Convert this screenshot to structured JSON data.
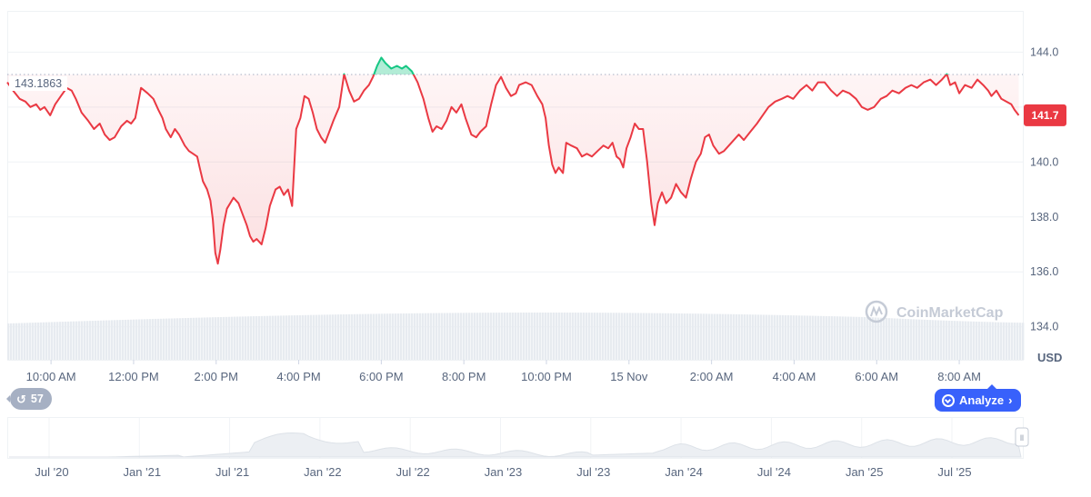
{
  "chart_data": {
    "type": "area",
    "currency_label": "USD",
    "reference_value": "143.1863",
    "current_value": "141.7",
    "y_ticks": [
      134.0,
      136.0,
      138.0,
      140.0,
      142.0,
      144.0
    ],
    "y_tick_labels": [
      "134.0",
      "136.0",
      "138.0",
      "140.0",
      "",
      "144.0"
    ],
    "ylim": [
      132.8,
      145.5
    ],
    "x_tick_labels": [
      "10:00 AM",
      "12:00 PM",
      "2:00 PM",
      "4:00 PM",
      "6:00 PM",
      "8:00 PM",
      "10:00 PM",
      "15 Nov",
      "2:00 AM",
      "4:00 AM",
      "6:00 AM",
      "8:00 AM"
    ],
    "x_ticks_t": [
      0.33,
      1.33,
      2.33,
      3.33,
      4.33,
      5.33,
      6.33,
      7.33,
      8.33,
      9.33,
      10.33,
      11.33
    ],
    "x_range_t": [
      -0.2,
      12.1
    ],
    "colors": {
      "down": "#ea3943",
      "up": "#16c784",
      "accent": "#3861fb"
    },
    "series": [
      {
        "values": [
          [
            -0.2,
            142.9
          ],
          [
            -0.13,
            142.6
          ],
          [
            -0.05,
            142.3
          ],
          [
            0.02,
            142.2
          ],
          [
            0.08,
            142.0
          ],
          [
            0.15,
            142.1
          ],
          [
            0.2,
            141.9
          ],
          [
            0.25,
            142.0
          ],
          [
            0.32,
            141.7
          ],
          [
            0.38,
            142.1
          ],
          [
            0.45,
            142.4
          ],
          [
            0.52,
            142.7
          ],
          [
            0.58,
            142.6
          ],
          [
            0.63,
            142.3
          ],
          [
            0.7,
            141.8
          ],
          [
            0.78,
            141.5
          ],
          [
            0.85,
            141.2
          ],
          [
            0.92,
            141.4
          ],
          [
            0.98,
            141.0
          ],
          [
            1.04,
            140.8
          ],
          [
            1.1,
            140.9
          ],
          [
            1.18,
            141.3
          ],
          [
            1.25,
            141.5
          ],
          [
            1.3,
            141.4
          ],
          [
            1.35,
            141.6
          ],
          [
            1.42,
            142.7
          ],
          [
            1.5,
            142.5
          ],
          [
            1.57,
            142.3
          ],
          [
            1.63,
            141.9
          ],
          [
            1.68,
            141.6
          ],
          [
            1.72,
            141.2
          ],
          [
            1.78,
            140.9
          ],
          [
            1.83,
            141.2
          ],
          [
            1.88,
            141.0
          ],
          [
            1.95,
            140.6
          ],
          [
            2.0,
            140.4
          ],
          [
            2.05,
            140.3
          ],
          [
            2.1,
            140.2
          ],
          [
            2.13,
            139.8
          ],
          [
            2.17,
            139.3
          ],
          [
            2.22,
            139.0
          ],
          [
            2.26,
            138.6
          ],
          [
            2.29,
            137.9
          ],
          [
            2.32,
            136.7
          ],
          [
            2.35,
            136.3
          ],
          [
            2.38,
            136.8
          ],
          [
            2.42,
            137.7
          ],
          [
            2.46,
            138.3
          ],
          [
            2.5,
            138.5
          ],
          [
            2.54,
            138.7
          ],
          [
            2.6,
            138.5
          ],
          [
            2.65,
            138.1
          ],
          [
            2.7,
            137.7
          ],
          [
            2.74,
            137.3
          ],
          [
            2.78,
            137.1
          ],
          [
            2.82,
            137.2
          ],
          [
            2.88,
            137.0
          ],
          [
            2.93,
            137.6
          ],
          [
            2.98,
            138.4
          ],
          [
            3.05,
            139.0
          ],
          [
            3.1,
            139.1
          ],
          [
            3.15,
            138.8
          ],
          [
            3.2,
            139.0
          ],
          [
            3.25,
            138.4
          ],
          [
            3.3,
            141.2
          ],
          [
            3.35,
            141.6
          ],
          [
            3.4,
            142.4
          ],
          [
            3.45,
            142.3
          ],
          [
            3.5,
            141.8
          ],
          [
            3.55,
            141.2
          ],
          [
            3.6,
            140.9
          ],
          [
            3.65,
            140.7
          ],
          [
            3.7,
            141.1
          ],
          [
            3.75,
            141.5
          ],
          [
            3.82,
            142.0
          ],
          [
            3.88,
            143.2
          ],
          [
            3.94,
            142.6
          ],
          [
            4.0,
            142.2
          ],
          [
            4.06,
            142.3
          ],
          [
            4.12,
            142.6
          ],
          [
            4.18,
            142.8
          ],
          [
            4.23,
            143.1
          ],
          [
            4.28,
            143.5
          ],
          [
            4.33,
            143.8
          ],
          [
            4.38,
            143.6
          ],
          [
            4.45,
            143.4
          ],
          [
            4.52,
            143.5
          ],
          [
            4.58,
            143.4
          ],
          [
            4.63,
            143.5
          ],
          [
            4.7,
            143.3
          ],
          [
            4.77,
            142.9
          ],
          [
            4.84,
            142.3
          ],
          [
            4.9,
            141.6
          ],
          [
            4.95,
            141.1
          ],
          [
            5.0,
            141.3
          ],
          [
            5.06,
            141.2
          ],
          [
            5.12,
            141.5
          ],
          [
            5.18,
            142.0
          ],
          [
            5.24,
            141.8
          ],
          [
            5.3,
            142.1
          ],
          [
            5.35,
            141.6
          ],
          [
            5.42,
            141.0
          ],
          [
            5.48,
            140.9
          ],
          [
            5.53,
            141.1
          ],
          [
            5.6,
            141.3
          ],
          [
            5.66,
            142.1
          ],
          [
            5.72,
            142.8
          ],
          [
            5.78,
            143.1
          ],
          [
            5.84,
            142.7
          ],
          [
            5.9,
            142.4
          ],
          [
            5.96,
            142.5
          ],
          [
            6.0,
            142.8
          ],
          [
            6.08,
            142.9
          ],
          [
            6.15,
            142.8
          ],
          [
            6.22,
            142.4
          ],
          [
            6.28,
            142.1
          ],
          [
            6.32,
            141.6
          ],
          [
            6.36,
            140.6
          ],
          [
            6.4,
            139.9
          ],
          [
            6.44,
            139.6
          ],
          [
            6.48,
            139.8
          ],
          [
            6.53,
            139.6
          ],
          [
            6.57,
            140.7
          ],
          [
            6.63,
            140.6
          ],
          [
            6.7,
            140.5
          ],
          [
            6.76,
            140.2
          ],
          [
            6.82,
            140.3
          ],
          [
            6.88,
            140.2
          ],
          [
            6.95,
            140.4
          ],
          [
            7.02,
            140.6
          ],
          [
            7.08,
            140.5
          ],
          [
            7.13,
            140.7
          ],
          [
            7.18,
            140.2
          ],
          [
            7.22,
            140.1
          ],
          [
            7.26,
            139.8
          ],
          [
            7.3,
            140.5
          ],
          [
            7.35,
            140.9
          ],
          [
            7.4,
            141.4
          ],
          [
            7.45,
            141.2
          ],
          [
            7.5,
            141.2
          ],
          [
            7.55,
            140.0
          ],
          [
            7.6,
            138.5
          ],
          [
            7.64,
            137.7
          ],
          [
            7.68,
            138.5
          ],
          [
            7.73,
            138.9
          ],
          [
            7.78,
            138.5
          ],
          [
            7.84,
            138.7
          ],
          [
            7.9,
            139.2
          ],
          [
            7.96,
            138.9
          ],
          [
            8.02,
            138.7
          ],
          [
            8.08,
            139.4
          ],
          [
            8.14,
            140.0
          ],
          [
            8.2,
            140.3
          ],
          [
            8.25,
            140.9
          ],
          [
            8.3,
            141.0
          ],
          [
            8.35,
            140.6
          ],
          [
            8.42,
            140.3
          ],
          [
            8.48,
            140.4
          ],
          [
            8.54,
            140.6
          ],
          [
            8.6,
            140.8
          ],
          [
            8.66,
            141.0
          ],
          [
            8.72,
            140.8
          ],
          [
            8.8,
            141.1
          ],
          [
            8.88,
            141.4
          ],
          [
            8.95,
            141.7
          ],
          [
            9.02,
            142.0
          ],
          [
            9.1,
            142.2
          ],
          [
            9.18,
            142.3
          ],
          [
            9.25,
            142.4
          ],
          [
            9.32,
            142.3
          ],
          [
            9.4,
            142.6
          ],
          [
            9.48,
            142.8
          ],
          [
            9.55,
            142.6
          ],
          [
            9.62,
            142.9
          ],
          [
            9.7,
            142.9
          ],
          [
            9.78,
            142.6
          ],
          [
            9.85,
            142.4
          ],
          [
            9.92,
            142.6
          ],
          [
            10.0,
            142.5
          ],
          [
            10.08,
            142.3
          ],
          [
            10.15,
            142.0
          ],
          [
            10.22,
            141.9
          ],
          [
            10.3,
            142.0
          ],
          [
            10.38,
            142.3
          ],
          [
            10.45,
            142.4
          ],
          [
            10.52,
            142.6
          ],
          [
            10.6,
            142.5
          ],
          [
            10.68,
            142.7
          ],
          [
            10.75,
            142.8
          ],
          [
            10.82,
            142.7
          ],
          [
            10.9,
            142.9
          ],
          [
            10.98,
            143.0
          ],
          [
            11.05,
            142.8
          ],
          [
            11.12,
            143.0
          ],
          [
            11.18,
            143.2
          ],
          [
            11.22,
            142.8
          ],
          [
            11.28,
            142.9
          ],
          [
            11.33,
            142.5
          ],
          [
            11.4,
            142.8
          ],
          [
            11.48,
            142.7
          ],
          [
            11.55,
            143.0
          ],
          [
            11.62,
            142.8
          ],
          [
            11.68,
            142.6
          ],
          [
            11.72,
            142.4
          ],
          [
            11.78,
            142.6
          ],
          [
            11.84,
            142.3
          ],
          [
            11.9,
            142.2
          ],
          [
            11.96,
            142.1
          ],
          [
            12.0,
            141.9
          ],
          [
            12.05,
            141.7
          ]
        ]
      }
    ]
  },
  "navigator": {
    "labels": [
      "Jul '20",
      "Jan '21",
      "Jul '21",
      "Jan '22",
      "Jul '22",
      "Jan '23",
      "Jul '23",
      "Jan '24",
      "Jul '24",
      "Jan '25",
      "Jul '25"
    ]
  },
  "ui": {
    "history_count": "57",
    "analyze_label": "Analyze",
    "watermark": "CoinMarketCap"
  }
}
